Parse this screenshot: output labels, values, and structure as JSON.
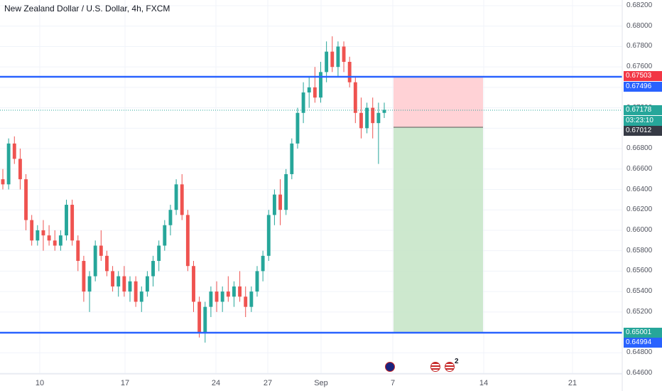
{
  "header": {
    "title": "New Zealand Dollar / U.S. Dollar, 4h, FXCM"
  },
  "price_axis": {
    "ticks": [
      "0.68200",
      "0.68000",
      "0.67800",
      "0.67600",
      "0.67400",
      "0.67200",
      "0.67000",
      "0.66800",
      "0.66600",
      "0.66400",
      "0.66200",
      "0.66000",
      "0.65800",
      "0.65600",
      "0.65400",
      "0.65200",
      "0.65000",
      "0.64800",
      "0.64600"
    ]
  },
  "price_labels": {
    "upper_line": "0.67503",
    "upper_line_alt": "0.67496",
    "last_price": "0.67178",
    "countdown": "03:23:10",
    "entry": "0.67012",
    "lower_line": "0.65001",
    "lower_line_alt": "0.64994"
  },
  "time_axis": {
    "ticks": [
      "10",
      "17",
      "24",
      "27",
      "Sep",
      "7",
      "14",
      "21"
    ]
  },
  "events": {
    "calendar_count": "2"
  },
  "colors": {
    "up": "#26a69a",
    "down": "#ef5350",
    "level_line": "#2962ff",
    "stop_zone": "#ffcdd2",
    "target_zone": "#c8e6c9",
    "last_price_bg": "#26a69a",
    "upper_label_bg": "#f23645",
    "alt_label_bg": "#2962ff",
    "entry_bg": "#363a45"
  },
  "chart_data": {
    "type": "candlestick",
    "title": "New Zealand Dollar / U.S. Dollar, 4h, FXCM",
    "ylim": [
      0.646,
      0.6825
    ],
    "grid": true,
    "horizontal_levels": [
      0.67503,
      0.65001
    ],
    "position": {
      "side": "short",
      "entry": 0.67012,
      "stop": 0.67503,
      "target": 0.65001
    },
    "last_price": 0.67178,
    "candles": [
      [
        0.665,
        0.666,
        0.664,
        0.6645
      ],
      [
        0.6645,
        0.669,
        0.664,
        0.6685
      ],
      [
        0.6685,
        0.6692,
        0.6665,
        0.667
      ],
      [
        0.667,
        0.668,
        0.664,
        0.665
      ],
      [
        0.665,
        0.6655,
        0.66,
        0.661
      ],
      [
        0.661,
        0.6615,
        0.6585,
        0.659
      ],
      [
        0.659,
        0.6605,
        0.6585,
        0.66
      ],
      [
        0.66,
        0.661,
        0.658,
        0.6595
      ],
      [
        0.6595,
        0.6605,
        0.6585,
        0.659
      ],
      [
        0.659,
        0.66,
        0.658,
        0.6585
      ],
      [
        0.6585,
        0.66,
        0.658,
        0.6595
      ],
      [
        0.6595,
        0.663,
        0.659,
        0.6625
      ],
      [
        0.6625,
        0.663,
        0.6585,
        0.659
      ],
      [
        0.659,
        0.6595,
        0.656,
        0.657
      ],
      [
        0.657,
        0.6575,
        0.653,
        0.654
      ],
      [
        0.654,
        0.656,
        0.652,
        0.6555
      ],
      [
        0.6555,
        0.659,
        0.655,
        0.6585
      ],
      [
        0.6585,
        0.66,
        0.657,
        0.6575
      ],
      [
        0.6575,
        0.658,
        0.6555,
        0.656
      ],
      [
        0.656,
        0.6565,
        0.654,
        0.6545
      ],
      [
        0.6545,
        0.656,
        0.6535,
        0.6555
      ],
      [
        0.6555,
        0.6565,
        0.6535,
        0.654
      ],
      [
        0.654,
        0.6555,
        0.653,
        0.655
      ],
      [
        0.655,
        0.6555,
        0.6525,
        0.653
      ],
      [
        0.653,
        0.6545,
        0.652,
        0.654
      ],
      [
        0.654,
        0.656,
        0.6535,
        0.6555
      ],
      [
        0.6555,
        0.6575,
        0.6545,
        0.657
      ],
      [
        0.657,
        0.659,
        0.656,
        0.6585
      ],
      [
        0.6585,
        0.661,
        0.658,
        0.6605
      ],
      [
        0.6605,
        0.6625,
        0.6595,
        0.662
      ],
      [
        0.662,
        0.665,
        0.6615,
        0.6645
      ],
      [
        0.6645,
        0.6655,
        0.661,
        0.6615
      ],
      [
        0.6615,
        0.662,
        0.656,
        0.6565
      ],
      [
        0.6565,
        0.657,
        0.652,
        0.653
      ],
      [
        0.653,
        0.6535,
        0.6495,
        0.65
      ],
      [
        0.65,
        0.653,
        0.649,
        0.6525
      ],
      [
        0.6525,
        0.6545,
        0.6515,
        0.654
      ],
      [
        0.654,
        0.655,
        0.652,
        0.653
      ],
      [
        0.653,
        0.6545,
        0.652,
        0.654
      ],
      [
        0.654,
        0.6555,
        0.653,
        0.6535
      ],
      [
        0.6535,
        0.655,
        0.6525,
        0.6545
      ],
      [
        0.6545,
        0.656,
        0.653,
        0.6535
      ],
      [
        0.6535,
        0.6545,
        0.6515,
        0.6525
      ],
      [
        0.6525,
        0.6545,
        0.652,
        0.654
      ],
      [
        0.654,
        0.6565,
        0.6535,
        0.656
      ],
      [
        0.656,
        0.658,
        0.655,
        0.6575
      ],
      [
        0.6575,
        0.662,
        0.657,
        0.6615
      ],
      [
        0.6615,
        0.664,
        0.6605,
        0.6635
      ],
      [
        0.6635,
        0.665,
        0.6605,
        0.662
      ],
      [
        0.662,
        0.666,
        0.6615,
        0.6655
      ],
      [
        0.6655,
        0.669,
        0.665,
        0.6685
      ],
      [
        0.6685,
        0.672,
        0.668,
        0.6715
      ],
      [
        0.6715,
        0.6745,
        0.6705,
        0.6735
      ],
      [
        0.6735,
        0.675,
        0.672,
        0.674
      ],
      [
        0.674,
        0.676,
        0.6725,
        0.673
      ],
      [
        0.673,
        0.6765,
        0.6725,
        0.6755
      ],
      [
        0.6755,
        0.6785,
        0.6745,
        0.6775
      ],
      [
        0.6775,
        0.679,
        0.6755,
        0.676
      ],
      [
        0.676,
        0.6785,
        0.675,
        0.678
      ],
      [
        0.678,
        0.6785,
        0.6755,
        0.6765
      ],
      [
        0.6765,
        0.677,
        0.674,
        0.6745
      ],
      [
        0.6745,
        0.675,
        0.6705,
        0.6715
      ],
      [
        0.6715,
        0.673,
        0.669,
        0.67
      ],
      [
        0.67,
        0.6725,
        0.6695,
        0.672
      ],
      [
        0.672,
        0.673,
        0.669,
        0.6705
      ],
      [
        0.6705,
        0.6725,
        0.6665,
        0.6715
      ],
      [
        0.6715,
        0.6725,
        0.671,
        0.6718
      ]
    ]
  }
}
